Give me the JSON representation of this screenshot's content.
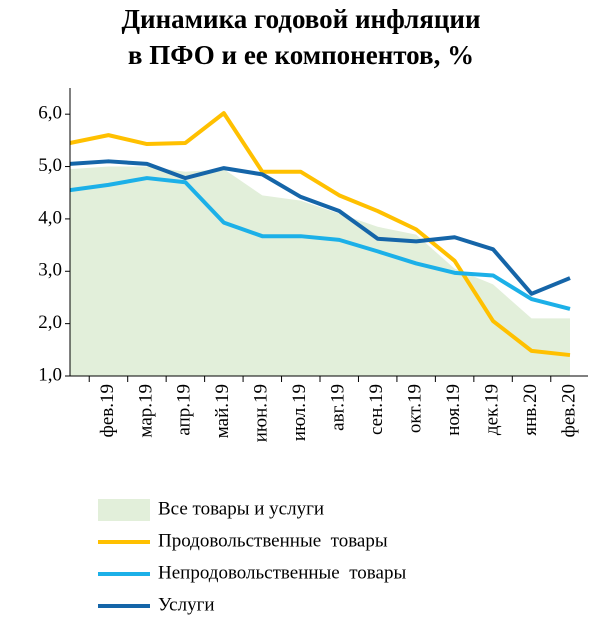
{
  "chart_data": {
    "type": "line",
    "title": [
      "Динамика годовой инфляции",
      "в ПФО и ее компонентов, %"
    ],
    "categories": [
      null,
      "фев.19",
      "мар.19",
      "апр.19",
      "май.19",
      "июн.19",
      "июл.19",
      "авг.19",
      "сен.19",
      "окт.19",
      "ноя.19",
      "дек.19",
      "янв.20",
      "фев.20"
    ],
    "series": [
      {
        "name": "Все товары и услуги",
        "kind": "area",
        "color": "#e2efda",
        "values": [
          4.95,
          5.0,
          5.0,
          4.9,
          4.95,
          4.45,
          4.35,
          4.1,
          3.85,
          3.7,
          3.05,
          2.75,
          2.1,
          2.1
        ]
      },
      {
        "name": "Продовольственные  товары",
        "color": "#ffc000",
        "values": [
          5.45,
          5.6,
          5.43,
          5.45,
          6.02,
          4.9,
          4.9,
          4.45,
          4.15,
          3.8,
          3.2,
          2.05,
          1.48,
          1.4
        ]
      },
      {
        "name": "Непродовольственные  товары",
        "color": "#1cb0e8",
        "values": [
          4.55,
          4.65,
          4.78,
          4.7,
          3.93,
          3.67,
          3.67,
          3.6,
          3.38,
          3.15,
          2.97,
          2.92,
          2.47,
          2.28
        ]
      },
      {
        "name": "Услуги",
        "color": "#1565a8",
        "values": [
          5.05,
          5.1,
          5.05,
          4.78,
          4.97,
          4.85,
          4.42,
          4.15,
          3.62,
          3.57,
          3.65,
          3.42,
          2.57,
          2.87
        ]
      }
    ],
    "ylim": [
      1,
      6.5
    ],
    "yticks": [
      {
        "value": 1,
        "label": "1,0"
      },
      {
        "value": 2,
        "label": "2,0"
      },
      {
        "value": 3,
        "label": "3,0"
      },
      {
        "value": 4,
        "label": "4,0"
      },
      {
        "value": 5,
        "label": "5,0"
      },
      {
        "value": 6,
        "label": "6,0"
      }
    ]
  }
}
